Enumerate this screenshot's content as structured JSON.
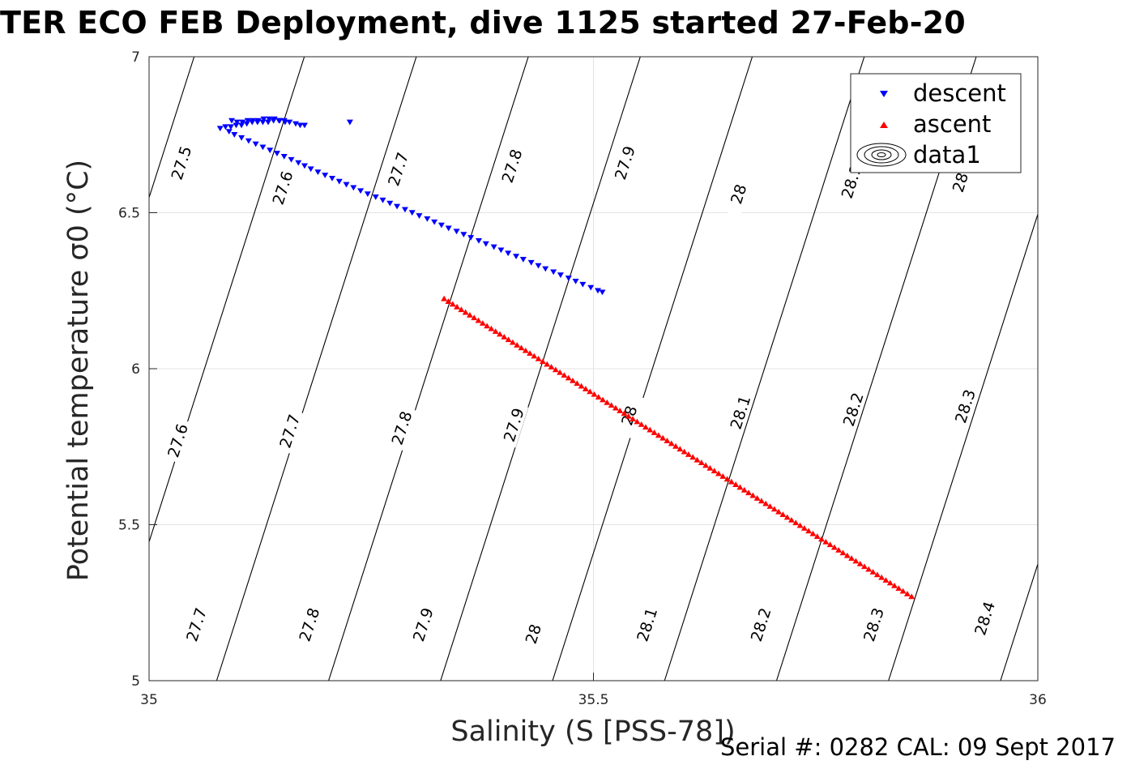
{
  "title": "TER ECO FEB Deployment, dive 1125 started 27-Feb-20",
  "footer": {
    "serial": "Serial #: 0282  CAL: 09 Sept 2017"
  },
  "chart_data": {
    "type": "scatter",
    "xlabel": "Salinity (S [PSS-78])",
    "ylabel": "Potential temperature σ0 (°C)",
    "xlim": [
      35,
      36
    ],
    "ylim": [
      5,
      7
    ],
    "xticks": [
      "35",
      "35.5",
      "36"
    ],
    "yticks": [
      "5",
      "5.5",
      "6",
      "6.5",
      "7"
    ],
    "grid": true,
    "legend_position": "top-right",
    "legend": [
      "descent",
      "ascent",
      "data1"
    ],
    "series": [
      {
        "name": "descent",
        "marker": "triangle-down",
        "color": "#0000ff",
        "points": [
          [
            35.226,
            6.79
          ],
          [
            35.175,
            6.78
          ],
          [
            35.17,
            6.78
          ],
          [
            35.165,
            6.785
          ],
          [
            35.158,
            6.79
          ],
          [
            35.152,
            6.795
          ],
          [
            35.146,
            6.795
          ],
          [
            35.14,
            6.795
          ],
          [
            35.134,
            6.79
          ],
          [
            35.128,
            6.79
          ],
          [
            35.122,
            6.79
          ],
          [
            35.116,
            6.79
          ],
          [
            35.11,
            6.785
          ],
          [
            35.104,
            6.78
          ],
          [
            35.098,
            6.78
          ],
          [
            35.092,
            6.775
          ],
          [
            35.086,
            6.775
          ],
          [
            35.08,
            6.77
          ],
          [
            35.093,
            6.795
          ],
          [
            35.099,
            6.79
          ],
          [
            35.105,
            6.79
          ],
          [
            35.111,
            6.795
          ],
          [
            35.117,
            6.795
          ],
          [
            35.123,
            6.795
          ],
          [
            35.129,
            6.8
          ],
          [
            35.135,
            6.8
          ],
          [
            35.141,
            6.8
          ],
          [
            35.147,
            6.795
          ],
          [
            35.153,
            6.79
          ],
          [
            35.09,
            6.76
          ],
          [
            35.096,
            6.75
          ],
          [
            35.104,
            6.74
          ],
          [
            35.112,
            6.73
          ],
          [
            35.12,
            6.72
          ],
          [
            35.128,
            6.71
          ],
          [
            35.136,
            6.7
          ],
          [
            35.144,
            6.69
          ],
          [
            35.152,
            6.68
          ],
          [
            35.16,
            6.67
          ],
          [
            35.168,
            6.66
          ],
          [
            35.175,
            6.65
          ],
          [
            35.182,
            6.64
          ],
          [
            35.19,
            6.63
          ],
          [
            35.198,
            6.62
          ],
          [
            35.206,
            6.61
          ],
          [
            35.214,
            6.6
          ],
          [
            35.222,
            6.59
          ],
          [
            35.23,
            6.58
          ],
          [
            35.238,
            6.57
          ],
          [
            35.246,
            6.56
          ],
          [
            35.255,
            6.55
          ],
          [
            35.263,
            6.54
          ],
          [
            35.271,
            6.53
          ],
          [
            35.279,
            6.52
          ],
          [
            35.288,
            6.51
          ],
          [
            35.296,
            6.5
          ],
          [
            35.304,
            6.49
          ],
          [
            35.313,
            6.48
          ],
          [
            35.321,
            6.47
          ],
          [
            35.329,
            6.46
          ],
          [
            35.337,
            6.45
          ],
          [
            35.346,
            6.44
          ],
          [
            35.354,
            6.43
          ],
          [
            35.362,
            6.42
          ],
          [
            35.371,
            6.41
          ],
          [
            35.379,
            6.4
          ],
          [
            35.388,
            6.39
          ],
          [
            35.396,
            6.38
          ],
          [
            35.404,
            6.37
          ],
          [
            35.413,
            6.36
          ],
          [
            35.421,
            6.35
          ],
          [
            35.43,
            6.34
          ],
          [
            35.438,
            6.33
          ],
          [
            35.446,
            6.32
          ],
          [
            35.455,
            6.31
          ],
          [
            35.463,
            6.3
          ],
          [
            35.472,
            6.29
          ],
          [
            35.48,
            6.28
          ],
          [
            35.488,
            6.27
          ],
          [
            35.497,
            6.26
          ],
          [
            35.505,
            6.25
          ],
          [
            35.51,
            6.245
          ]
        ]
      },
      {
        "name": "ascent",
        "marker": "triangle-up",
        "color": "#ff0000",
        "start": [
          35.332,
          6.225
        ],
        "end": [
          35.858,
          5.27
        ],
        "count": 110
      },
      {
        "name": "data1",
        "type": "contour",
        "color": "#000000",
        "note": "σ0 density isolines, labeled",
        "levels": [
          "27.5",
          "27.6",
          "27.7",
          "27.8",
          "27.9",
          "28",
          "28.1",
          "28.2",
          "28.3",
          "28.4"
        ]
      }
    ]
  }
}
